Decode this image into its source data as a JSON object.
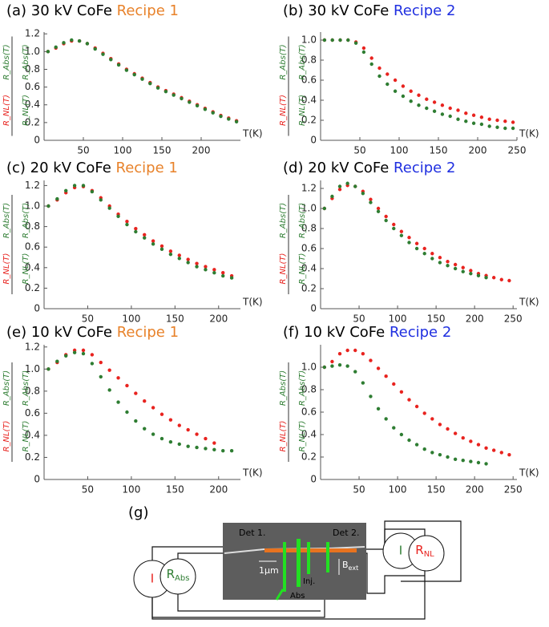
{
  "chart_data": [
    {
      "type": "scatter",
      "title": "(a) 30 kV CoFe",
      "title_highlight": "Recipe 1",
      "title_highlight_color": "#e8822a",
      "xlabel": "T(K)",
      "xlim": [
        0,
        250
      ],
      "xticks": [
        50,
        100,
        150,
        200
      ],
      "ylim": [
        0,
        1.22
      ],
      "yticks": [
        0,
        0.2,
        0.4,
        0.6,
        0.8,
        {
          "value": 1,
          "label": "1.0"
        },
        1.2
      ],
      "x": [
        5,
        15,
        25,
        35,
        45,
        55,
        65,
        75,
        85,
        95,
        105,
        115,
        125,
        135,
        145,
        155,
        165,
        175,
        185,
        195,
        205,
        215,
        225,
        235,
        245
      ],
      "series": [
        {
          "name": "R_NL(T)",
          "color": "#e8231f",
          "values": [
            1.0,
            1.04,
            1.09,
            1.12,
            1.12,
            1.09,
            1.04,
            0.98,
            0.92,
            0.86,
            0.8,
            0.75,
            0.7,
            0.65,
            0.6,
            0.56,
            0.52,
            0.48,
            0.44,
            0.4,
            0.36,
            0.32,
            0.28,
            0.25,
            0.22
          ]
        },
        {
          "name": "R_Abs(T)",
          "color": "#2e7d32",
          "values": [
            1.0,
            1.05,
            1.1,
            1.13,
            1.12,
            1.09,
            1.03,
            0.97,
            0.91,
            0.85,
            0.79,
            0.74,
            0.69,
            0.64,
            0.59,
            0.55,
            0.51,
            0.47,
            0.43,
            0.39,
            0.35,
            0.31,
            0.27,
            0.24,
            0.21
          ]
        }
      ]
    },
    {
      "type": "scatter",
      "title": "(b) 30 kV CoFe",
      "title_highlight": "Recipe 2",
      "title_highlight_color": "#1f2fe0",
      "xlabel": "T(K)",
      "xlim": [
        0,
        250
      ],
      "xticks": [
        50,
        100,
        150,
        200,
        250
      ],
      "ylim": [
        0,
        1.08
      ],
      "yticks": [
        0,
        0.2,
        0.4,
        0.6,
        0.8,
        {
          "value": 1,
          "label": "1.0"
        }
      ],
      "x": [
        5,
        15,
        25,
        35,
        45,
        55,
        65,
        75,
        85,
        95,
        105,
        115,
        125,
        135,
        145,
        155,
        165,
        175,
        185,
        195,
        205,
        215,
        225,
        235,
        245
      ],
      "series": [
        {
          "name": "R_NL(T)",
          "color": "#e8231f",
          "values": [
            1.0,
            1.0,
            1.0,
            1.0,
            0.98,
            0.92,
            0.82,
            0.72,
            0.66,
            0.6,
            0.54,
            0.49,
            0.45,
            0.41,
            0.38,
            0.35,
            0.32,
            0.3,
            0.27,
            0.25,
            0.23,
            0.21,
            0.2,
            0.19,
            0.18
          ]
        },
        {
          "name": "R_Abs(T)",
          "color": "#2e7d32",
          "values": [
            1.0,
            1.0,
            1.0,
            1.0,
            0.97,
            0.88,
            0.76,
            0.64,
            0.56,
            0.49,
            0.44,
            0.39,
            0.35,
            0.32,
            0.29,
            0.26,
            0.24,
            0.21,
            0.19,
            0.17,
            0.16,
            0.14,
            0.13,
            0.12,
            0.12
          ]
        }
      ]
    },
    {
      "type": "scatter",
      "title": "(c) 20 kV CoFe",
      "title_highlight": "Recipe 1",
      "title_highlight_color": "#e8822a",
      "xlabel": "T(K)",
      "xlim": [
        0,
        225
      ],
      "xticks": [
        50,
        100,
        150,
        200
      ],
      "ylim": [
        0,
        1.25
      ],
      "yticks": [
        0,
        0.2,
        0.4,
        0.6,
        0.8,
        {
          "value": 1,
          "label": "1.0"
        },
        1.2
      ],
      "x": [
        5,
        15,
        25,
        35,
        45,
        55,
        65,
        75,
        85,
        95,
        105,
        115,
        125,
        135,
        145,
        155,
        165,
        175,
        185,
        195,
        205,
        215
      ],
      "series": [
        {
          "name": "R_NL(T)",
          "color": "#e8231f",
          "values": [
            1.0,
            1.06,
            1.13,
            1.18,
            1.19,
            1.15,
            1.08,
            1.0,
            0.92,
            0.85,
            0.78,
            0.72,
            0.66,
            0.61,
            0.56,
            0.52,
            0.48,
            0.44,
            0.41,
            0.38,
            0.35,
            0.32
          ]
        },
        {
          "name": "R_Abs(T)",
          "color": "#2e7d32",
          "values": [
            1.0,
            1.07,
            1.15,
            1.2,
            1.2,
            1.14,
            1.06,
            0.98,
            0.9,
            0.82,
            0.75,
            0.69,
            0.63,
            0.58,
            0.53,
            0.49,
            0.45,
            0.41,
            0.38,
            0.35,
            0.32,
            0.3
          ]
        }
      ]
    },
    {
      "type": "scatter",
      "title": "(d) 20 kV CoFe",
      "title_highlight": "Recipe 2",
      "title_highlight_color": "#1f2fe0",
      "xlabel": "T(K)",
      "xlim": [
        0,
        255
      ],
      "xticks": [
        50,
        100,
        150,
        200,
        250
      ],
      "ylim": [
        0,
        1.28
      ],
      "yticks": [
        0,
        0.2,
        0.4,
        0.6,
        0.8,
        {
          "value": 1,
          "label": "1.0"
        },
        1.2
      ],
      "x": [
        5,
        15,
        25,
        35,
        45,
        55,
        65,
        75,
        85,
        95,
        105,
        115,
        125,
        135,
        145,
        155,
        165,
        175,
        185,
        195,
        205,
        215,
        225,
        235,
        245
      ],
      "series": [
        {
          "name": "R_NL(T)",
          "color": "#e8231f",
          "values": [
            1.0,
            1.1,
            1.19,
            1.23,
            1.22,
            1.17,
            1.09,
            1.0,
            0.92,
            0.84,
            0.77,
            0.71,
            0.65,
            0.6,
            0.55,
            0.51,
            0.47,
            0.44,
            0.41,
            0.38,
            0.35,
            0.33,
            0.31,
            0.29,
            0.28
          ]
        },
        {
          "name": "R_Abs(T)",
          "color": "#2e7d32",
          "values": [
            1.0,
            1.12,
            1.22,
            1.25,
            1.22,
            1.15,
            1.06,
            0.97,
            0.88,
            0.8,
            0.73,
            0.66,
            0.6,
            0.55,
            0.5,
            0.46,
            0.43,
            0.4,
            0.37,
            0.35,
            0.33,
            0.31,
            null,
            null,
            null
          ]
        }
      ]
    },
    {
      "type": "scatter",
      "title": "(e) 10 kV CoFe",
      "title_highlight": "Recipe 1",
      "title_highlight_color": "#e8822a",
      "xlabel": "T(K)",
      "xlim": [
        0,
        225
      ],
      "xticks": [
        50,
        100,
        150,
        200
      ],
      "ylim": [
        0,
        1.22
      ],
      "yticks": [
        0,
        0.2,
        0.4,
        0.6,
        0.8,
        {
          "value": 1,
          "label": "1.0"
        },
        1.2
      ],
      "x": [
        5,
        15,
        25,
        35,
        45,
        55,
        65,
        75,
        85,
        95,
        105,
        115,
        125,
        135,
        145,
        155,
        165,
        175,
        185,
        195,
        205,
        215
      ],
      "series": [
        {
          "name": "R_NL(T)",
          "color": "#e8231f",
          "values": [
            1.0,
            1.06,
            1.13,
            1.17,
            1.17,
            1.13,
            1.06,
            0.99,
            0.92,
            0.85,
            0.78,
            0.71,
            0.65,
            0.59,
            0.54,
            0.49,
            0.45,
            0.41,
            0.37,
            0.33,
            null,
            null
          ]
        },
        {
          "name": "R_Abs(T)",
          "color": "#2e7d32",
          "values": [
            1.0,
            1.07,
            1.12,
            1.15,
            1.14,
            1.05,
            0.93,
            0.81,
            0.7,
            0.61,
            0.53,
            0.46,
            0.41,
            0.37,
            0.34,
            0.32,
            0.3,
            0.29,
            0.28,
            0.27,
            0.26,
            0.26
          ]
        }
      ]
    },
    {
      "type": "scatter",
      "title": "(f) 10 kV CoFe",
      "title_highlight": "Recipe 2",
      "title_highlight_color": "#1f2fe0",
      "xlabel": "T(K)",
      "xlim": [
        0,
        255
      ],
      "xticks": [
        50,
        100,
        150,
        200,
        250
      ],
      "ylim": [
        0,
        1.2
      ],
      "yticks": [
        0,
        0.2,
        0.4,
        0.6,
        0.8,
        {
          "value": 1,
          "label": "1.0"
        }
      ],
      "x": [
        5,
        15,
        25,
        35,
        45,
        55,
        65,
        75,
        85,
        95,
        105,
        115,
        125,
        135,
        145,
        155,
        165,
        175,
        185,
        195,
        205,
        215,
        225,
        235,
        245
      ],
      "series": [
        {
          "name": "R_NL(T)",
          "color": "#e8231f",
          "values": [
            1.0,
            1.05,
            1.12,
            1.15,
            1.15,
            1.12,
            1.06,
            0.99,
            0.92,
            0.85,
            0.78,
            0.71,
            0.65,
            0.59,
            0.54,
            0.49,
            0.45,
            0.41,
            0.37,
            0.34,
            0.31,
            0.28,
            0.26,
            0.24,
            0.22
          ]
        },
        {
          "name": "R_Abs(T)",
          "color": "#2e7d32",
          "values": [
            1.0,
            1.01,
            1.02,
            1.01,
            0.96,
            0.86,
            0.74,
            0.63,
            0.54,
            0.46,
            0.4,
            0.35,
            0.31,
            0.27,
            0.24,
            0.22,
            0.2,
            0.18,
            0.17,
            0.16,
            0.15,
            0.14,
            null,
            null,
            null
          ]
        }
      ]
    }
  ],
  "diagram": {
    "label": "(g)",
    "det1": "Det 1.",
    "det2": "Det 2.",
    "scale": "1μm",
    "inj": "Inj.",
    "abs": "Abs",
    "bfield": "B",
    "bfield_sub": "ext",
    "source_left": "I",
    "meter_left": "R",
    "meter_left_sub": "Abs",
    "source_right": "I",
    "meter_right": "R",
    "meter_right_sub": "NL"
  }
}
